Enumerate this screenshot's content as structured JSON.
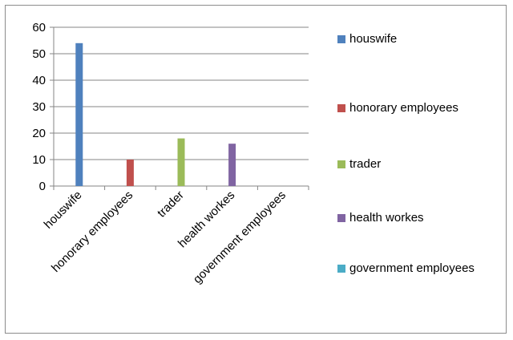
{
  "chart_data": {
    "type": "bar",
    "categories": [
      "houswife",
      "honorary employees",
      "trader",
      "health workes",
      "government employees"
    ],
    "series": [
      {
        "name": "houswife",
        "values": [
          54,
          null,
          null,
          null,
          null
        ],
        "color": "#4f81bd"
      },
      {
        "name": "honorary employees",
        "values": [
          null,
          10,
          null,
          null,
          null
        ],
        "color": "#c0504d"
      },
      {
        "name": "trader",
        "values": [
          null,
          null,
          18,
          null,
          null
        ],
        "color": "#9bbb59"
      },
      {
        "name": "health workes",
        "values": [
          null,
          null,
          null,
          16,
          null
        ],
        "color": "#8064a2"
      },
      {
        "name": "government employees",
        "values": [
          null,
          null,
          null,
          null,
          0
        ],
        "color": "#4bacc6"
      }
    ],
    "title": "",
    "xlabel": "",
    "ylabel": "",
    "ylim": [
      0,
      60
    ],
    "yticks": [
      0,
      10,
      20,
      30,
      40,
      50,
      60
    ],
    "grid": true,
    "legend_position": "right"
  }
}
